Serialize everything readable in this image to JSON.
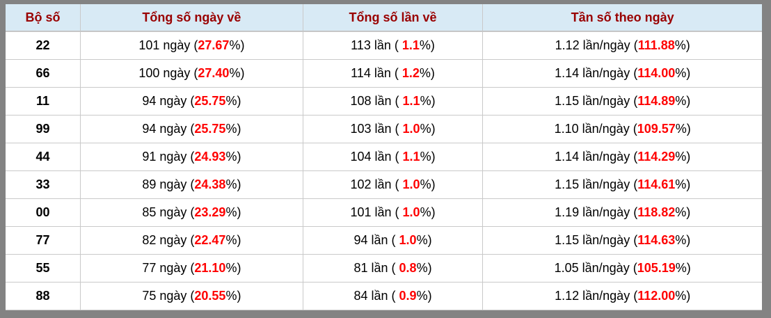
{
  "page": {
    "background_color": "#838383"
  },
  "table": {
    "header": {
      "bg_color": "#d8eaf5",
      "text_color": "#990000",
      "columns": [
        "Bộ số",
        "Tổng số ngày về",
        "Tổng số lần về",
        "Tần số theo ngày"
      ]
    },
    "highlight_color": "#ff0000",
    "rows": [
      {
        "pair": "22",
        "days": [
          "101 ngày (",
          "27.67",
          "%)"
        ],
        "times": [
          "113 lần ( ",
          "1.1",
          "%)"
        ],
        "freq": [
          "1.12 lần/ngày (",
          "111.88",
          "%)"
        ]
      },
      {
        "pair": "66",
        "days": [
          "100 ngày (",
          "27.40",
          "%)"
        ],
        "times": [
          "114 lần ( ",
          "1.2",
          "%)"
        ],
        "freq": [
          "1.14 lần/ngày (",
          "114.00",
          "%)"
        ]
      },
      {
        "pair": "11",
        "days": [
          "94 ngày (",
          "25.75",
          "%)"
        ],
        "times": [
          "108 lần ( ",
          "1.1",
          "%)"
        ],
        "freq": [
          "1.15 lần/ngày (",
          "114.89",
          "%)"
        ]
      },
      {
        "pair": "99",
        "days": [
          "94 ngày (",
          "25.75",
          "%)"
        ],
        "times": [
          "103 lần ( ",
          "1.0",
          "%)"
        ],
        "freq": [
          "1.10 lần/ngày (",
          "109.57",
          "%)"
        ]
      },
      {
        "pair": "44",
        "days": [
          "91 ngày (",
          "24.93",
          "%)"
        ],
        "times": [
          "104 lần ( ",
          "1.1",
          "%)"
        ],
        "freq": [
          "1.14 lần/ngày (",
          "114.29",
          "%)"
        ]
      },
      {
        "pair": "33",
        "days": [
          "89 ngày (",
          "24.38",
          "%)"
        ],
        "times": [
          "102 lần ( ",
          "1.0",
          "%)"
        ],
        "freq": [
          "1.15 lần/ngày (",
          "114.61",
          "%)"
        ]
      },
      {
        "pair": "00",
        "days": [
          "85 ngày (",
          "23.29",
          "%)"
        ],
        "times": [
          "101 lần ( ",
          "1.0",
          "%)"
        ],
        "freq": [
          "1.19 lần/ngày (",
          "118.82",
          "%)"
        ]
      },
      {
        "pair": "77",
        "days": [
          "82 ngày (",
          "22.47",
          "%)"
        ],
        "times": [
          "94 lần ( ",
          "1.0",
          "%)"
        ],
        "freq": [
          "1.15 lần/ngày (",
          "114.63",
          "%)"
        ]
      },
      {
        "pair": "55",
        "days": [
          "77 ngày (",
          "21.10",
          "%)"
        ],
        "times": [
          "81 lần ( ",
          "0.8",
          "%)"
        ],
        "freq": [
          "1.05 lần/ngày (",
          "105.19",
          "%)"
        ]
      },
      {
        "pair": "88",
        "days": [
          "75 ngày (",
          "20.55",
          "%)"
        ],
        "times": [
          "84 lần ( ",
          "0.9",
          "%)"
        ],
        "freq": [
          "1.12 lần/ngày (",
          "112.00",
          "%)"
        ]
      }
    ]
  }
}
